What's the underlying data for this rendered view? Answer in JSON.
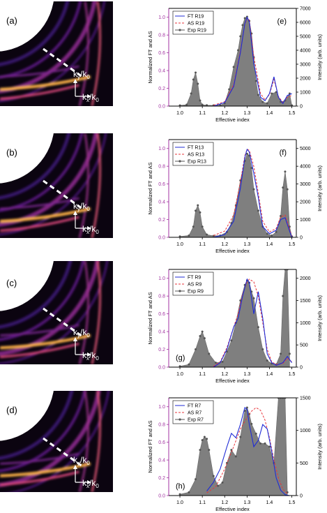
{
  "panels": [
    {
      "label": "(a)",
      "axis_y": "k",
      "axis_y_sub": "y",
      "axis_y_den": "/k",
      "axis_y_den_sub": "0",
      "axis_x": "k",
      "axis_x_sub": "x",
      "axis_x_den": "/k",
      "axis_x_den_sub": "0"
    },
    {
      "label": "(b)",
      "axis_y": "k",
      "axis_y_sub": "y",
      "axis_y_den": "/k",
      "axis_y_den_sub": "0",
      "axis_x": "k",
      "axis_x_sub": "x",
      "axis_x_den": "/k",
      "axis_x_den_sub": "0"
    },
    {
      "label": "(c)",
      "axis_y": "k",
      "axis_y_sub": "y",
      "axis_y_den": "/k",
      "axis_y_den_sub": "0",
      "axis_x": "k",
      "axis_x_sub": "x",
      "axis_x_den": "/k",
      "axis_x_den_sub": "0"
    },
    {
      "label": "(d)",
      "axis_y": "k",
      "axis_y_sub": "y",
      "axis_y_den": "/k",
      "axis_y_den_sub": "0",
      "axis_x": "k",
      "axis_x_sub": "x",
      "axis_x_den": "/k",
      "axis_x_den_sub": "0"
    }
  ],
  "colors": {
    "ft": "#1f2bd6",
    "as": "#e8353b",
    "exp_fill": "#7f7f7f",
    "exp_marker": "#555555",
    "left_axis": "#a030a0",
    "kspace_bg": "#0b0410"
  },
  "chart_data": [
    {
      "type": "line",
      "panel_label": "(e)",
      "xlabel": "Effective index",
      "ylabel_left": "Normalized FT and AS",
      "ylabel_right": "Intensity (arb. units)",
      "xlim": [
        0.95,
        1.52
      ],
      "ylim_left": [
        0,
        1.1
      ],
      "ylim_right": [
        0,
        7000
      ],
      "xticks": [
        "1.0",
        "1.1",
        "1.2",
        "1.3",
        "1.4",
        "1.5"
      ],
      "yticks_left": [
        "0.0",
        "0.2",
        "0.4",
        "0.6",
        "0.8",
        "1.0"
      ],
      "yticks_right": [
        "0",
        "1000",
        "2000",
        "3000",
        "4000",
        "5000",
        "6000",
        "7000"
      ],
      "legend": [
        "FT R19",
        "AS R19",
        "Exp R19"
      ],
      "series": [
        {
          "name": "FT R19",
          "x": [
            1.15,
            1.2,
            1.24,
            1.27,
            1.29,
            1.3,
            1.31,
            1.33,
            1.36,
            1.38,
            1.4,
            1.42,
            1.44,
            1.46,
            1.48,
            1.5
          ],
          "values": [
            0.0,
            0.04,
            0.22,
            0.6,
            0.93,
            1.0,
            0.95,
            0.48,
            0.1,
            0.06,
            0.14,
            0.33,
            0.1,
            0.03,
            0.12,
            0.14
          ]
        },
        {
          "name": "AS R19",
          "x": [
            1.15,
            1.2,
            1.24,
            1.27,
            1.29,
            1.3,
            1.31,
            1.33,
            1.36,
            1.38,
            1.4,
            1.42,
            1.44,
            1.46,
            1.48,
            1.5
          ],
          "values": [
            0.01,
            0.05,
            0.24,
            0.62,
            0.92,
            0.99,
            0.97,
            0.56,
            0.14,
            0.07,
            0.13,
            0.3,
            0.11,
            0.04,
            0.1,
            0.12
          ]
        },
        {
          "name": "Exp R19",
          "x": [
            1.0,
            1.03,
            1.05,
            1.06,
            1.07,
            1.08,
            1.09,
            1.1,
            1.12,
            1.15,
            1.18,
            1.2,
            1.22,
            1.24,
            1.26,
            1.27,
            1.28,
            1.29,
            1.3,
            1.31,
            1.32,
            1.33,
            1.34,
            1.35,
            1.37,
            1.39,
            1.41,
            1.43,
            1.45,
            1.47,
            1.49,
            1.5
          ],
          "values": [
            50,
            100,
            900,
            1900,
            2400,
            1600,
            400,
            100,
            60,
            50,
            60,
            200,
            1200,
            2800,
            4000,
            5000,
            5800,
            6300,
            6400,
            6100,
            5200,
            3500,
            1800,
            800,
            300,
            200,
            900,
            1000,
            300,
            400,
            900,
            50
          ]
        }
      ]
    },
    {
      "type": "line",
      "panel_label": "(f)",
      "xlabel": "Effective index",
      "ylabel_left": "Normalized FT and AS",
      "ylabel_right": "Intensity (arb. units)",
      "xlim": [
        0.95,
        1.52
      ],
      "ylim_left": [
        0,
        1.1
      ],
      "ylim_right": [
        0,
        5500
      ],
      "xticks": [
        "1.0",
        "1.1",
        "1.2",
        "1.3",
        "1.4",
        "1.5"
      ],
      "yticks_left": [
        "0.0",
        "0.2",
        "0.4",
        "0.6",
        "0.8",
        "1.0"
      ],
      "yticks_right": [
        "0",
        "1000",
        "2000",
        "3000",
        "4000",
        "5000"
      ],
      "legend": [
        "FT R13",
        "AS R13",
        "Exp R13"
      ],
      "series": [
        {
          "name": "FT R13",
          "x": [
            1.15,
            1.2,
            1.24,
            1.27,
            1.29,
            1.3,
            1.31,
            1.33,
            1.35,
            1.37,
            1.4,
            1.43,
            1.45,
            1.47,
            1.49,
            1.5
          ],
          "values": [
            0.0,
            0.03,
            0.18,
            0.55,
            0.9,
            0.99,
            0.96,
            0.72,
            0.45,
            0.12,
            0.04,
            0.08,
            0.2,
            0.22,
            0.07,
            0.0
          ]
        },
        {
          "name": "AS R13",
          "x": [
            1.15,
            1.2,
            1.24,
            1.27,
            1.29,
            1.3,
            1.31,
            1.33,
            1.35,
            1.37,
            1.4,
            1.43,
            1.45,
            1.47,
            1.49,
            1.5
          ],
          "values": [
            0.02,
            0.07,
            0.25,
            0.62,
            0.92,
            0.99,
            0.98,
            0.8,
            0.5,
            0.18,
            0.06,
            0.1,
            0.23,
            0.25,
            0.09,
            0.01
          ]
        },
        {
          "name": "Exp R13",
          "x": [
            1.0,
            1.04,
            1.06,
            1.07,
            1.08,
            1.09,
            1.1,
            1.12,
            1.15,
            1.18,
            1.21,
            1.23,
            1.25,
            1.27,
            1.29,
            1.3,
            1.31,
            1.32,
            1.33,
            1.35,
            1.37,
            1.39,
            1.41,
            1.43,
            1.45,
            1.46,
            1.47,
            1.48,
            1.49,
            1.5
          ],
          "values": [
            50,
            100,
            600,
            1500,
            1800,
            1400,
            600,
            150,
            80,
            100,
            300,
            800,
            1800,
            3200,
            4300,
            4700,
            4600,
            3900,
            2700,
            1500,
            600,
            200,
            100,
            300,
            1200,
            2800,
            3700,
            2700,
            600,
            50
          ]
        }
      ]
    },
    {
      "type": "line",
      "panel_label": "(g)",
      "xlabel": "Effective index",
      "ylabel_left": "Normalized FT and AS",
      "ylabel_right": "Intensity (arb. units)",
      "xlim": [
        0.95,
        1.52
      ],
      "ylim_left": [
        0,
        1.1
      ],
      "ylim_right": [
        0,
        2200
      ],
      "xticks": [
        "1.0",
        "1.1",
        "1.2",
        "1.3",
        "1.4",
        "1.5"
      ],
      "yticks_left": [
        "0.0",
        "0.2",
        "0.4",
        "0.6",
        "0.8",
        "1.0"
      ],
      "yticks_right": [
        "0",
        "500",
        "1000",
        "1500",
        "2000"
      ],
      "legend": [
        "FT R9",
        "AS R9",
        "Exp R9"
      ],
      "series": [
        {
          "name": "FT R9",
          "x": [
            1.15,
            1.18,
            1.21,
            1.24,
            1.26,
            1.28,
            1.3,
            1.31,
            1.33,
            1.35,
            1.37,
            1.39,
            1.41,
            1.43,
            1.46,
            1.48,
            1.5
          ],
          "values": [
            0.0,
            0.05,
            0.2,
            0.45,
            0.55,
            0.8,
            0.99,
            0.95,
            0.6,
            0.85,
            0.55,
            0.15,
            0.05,
            0.02,
            0.05,
            0.12,
            0.05
          ]
        },
        {
          "name": "AS R9",
          "x": [
            1.15,
            1.18,
            1.21,
            1.24,
            1.26,
            1.28,
            1.3,
            1.31,
            1.33,
            1.35,
            1.37,
            1.39,
            1.41,
            1.43,
            1.46,
            1.48,
            1.5
          ],
          "values": [
            0.01,
            0.06,
            0.22,
            0.45,
            0.6,
            0.82,
            0.96,
            0.99,
            0.96,
            0.8,
            0.5,
            0.2,
            0.06,
            0.03,
            0.04,
            0.1,
            0.06
          ]
        },
        {
          "name": "Exp R9",
          "x": [
            1.0,
            1.04,
            1.07,
            1.09,
            1.1,
            1.11,
            1.13,
            1.16,
            1.19,
            1.21,
            1.23,
            1.25,
            1.27,
            1.29,
            1.3,
            1.31,
            1.32,
            1.33,
            1.35,
            1.37,
            1.39,
            1.41,
            1.43,
            1.45,
            1.46,
            1.47,
            1.48,
            1.49
          ],
          "values": [
            20,
            60,
            400,
            700,
            800,
            650,
            300,
            100,
            120,
            350,
            600,
            1000,
            1500,
            1850,
            1950,
            1900,
            1700,
            1550,
            900,
            400,
            150,
            80,
            60,
            300,
            1600,
            2200,
            2200,
            300
          ]
        }
      ]
    },
    {
      "type": "line",
      "panel_label": "(h)",
      "xlabel": "Effective index",
      "ylabel_left": "Normalized FT and AS",
      "ylabel_right": "Intensity (arb. units)",
      "xlim": [
        0.95,
        1.52
      ],
      "ylim_left": [
        0,
        1.1
      ],
      "ylim_right": [
        0,
        1500
      ],
      "xticks": [
        "1.0",
        "1.1",
        "1.2",
        "1.3",
        "1.4",
        "1.5"
      ],
      "yticks_left": [
        "0.0",
        "0.2",
        "0.4",
        "0.6",
        "0.8",
        "1.0"
      ],
      "yticks_right": [
        "0",
        "500",
        "1000",
        "1500"
      ],
      "legend": [
        "FT R7",
        "AS R7",
        "Exp R7"
      ],
      "series": [
        {
          "name": "FT R7",
          "x": [
            1.12,
            1.15,
            1.18,
            1.21,
            1.23,
            1.25,
            1.27,
            1.29,
            1.3,
            1.31,
            1.33,
            1.35,
            1.37,
            1.39,
            1.41,
            1.43,
            1.45,
            1.47,
            1.49
          ],
          "values": [
            0.05,
            0.15,
            0.3,
            0.55,
            0.7,
            0.65,
            0.8,
            0.99,
            0.97,
            0.8,
            0.55,
            0.62,
            0.8,
            0.75,
            0.5,
            0.2,
            0.06,
            0.01,
            0.0
          ]
        },
        {
          "name": "AS R7",
          "x": [
            1.12,
            1.16,
            1.2,
            1.24,
            1.27,
            1.3,
            1.32,
            1.34,
            1.36,
            1.38,
            1.4,
            1.42,
            1.44,
            1.46,
            1.48
          ],
          "values": [
            0.03,
            0.1,
            0.3,
            0.55,
            0.75,
            0.88,
            0.95,
            0.99,
            0.96,
            0.85,
            0.65,
            0.4,
            0.2,
            0.07,
            0.02
          ]
        },
        {
          "name": "Exp R7",
          "x": [
            1.0,
            1.04,
            1.07,
            1.09,
            1.1,
            1.11,
            1.12,
            1.13,
            1.15,
            1.17,
            1.19,
            1.21,
            1.23,
            1.25,
            1.27,
            1.29,
            1.3,
            1.31,
            1.32,
            1.34,
            1.36,
            1.38,
            1.4,
            1.42,
            1.44,
            1.45,
            1.46,
            1.47,
            1.48
          ],
          "values": [
            20,
            50,
            250,
            700,
            850,
            900,
            870,
            700,
            300,
            150,
            200,
            500,
            700,
            600,
            900,
            1300,
            1350,
            1250,
            1100,
            950,
            800,
            800,
            750,
            500,
            1500,
            1500,
            1500,
            1500,
            50
          ]
        }
      ]
    }
  ]
}
